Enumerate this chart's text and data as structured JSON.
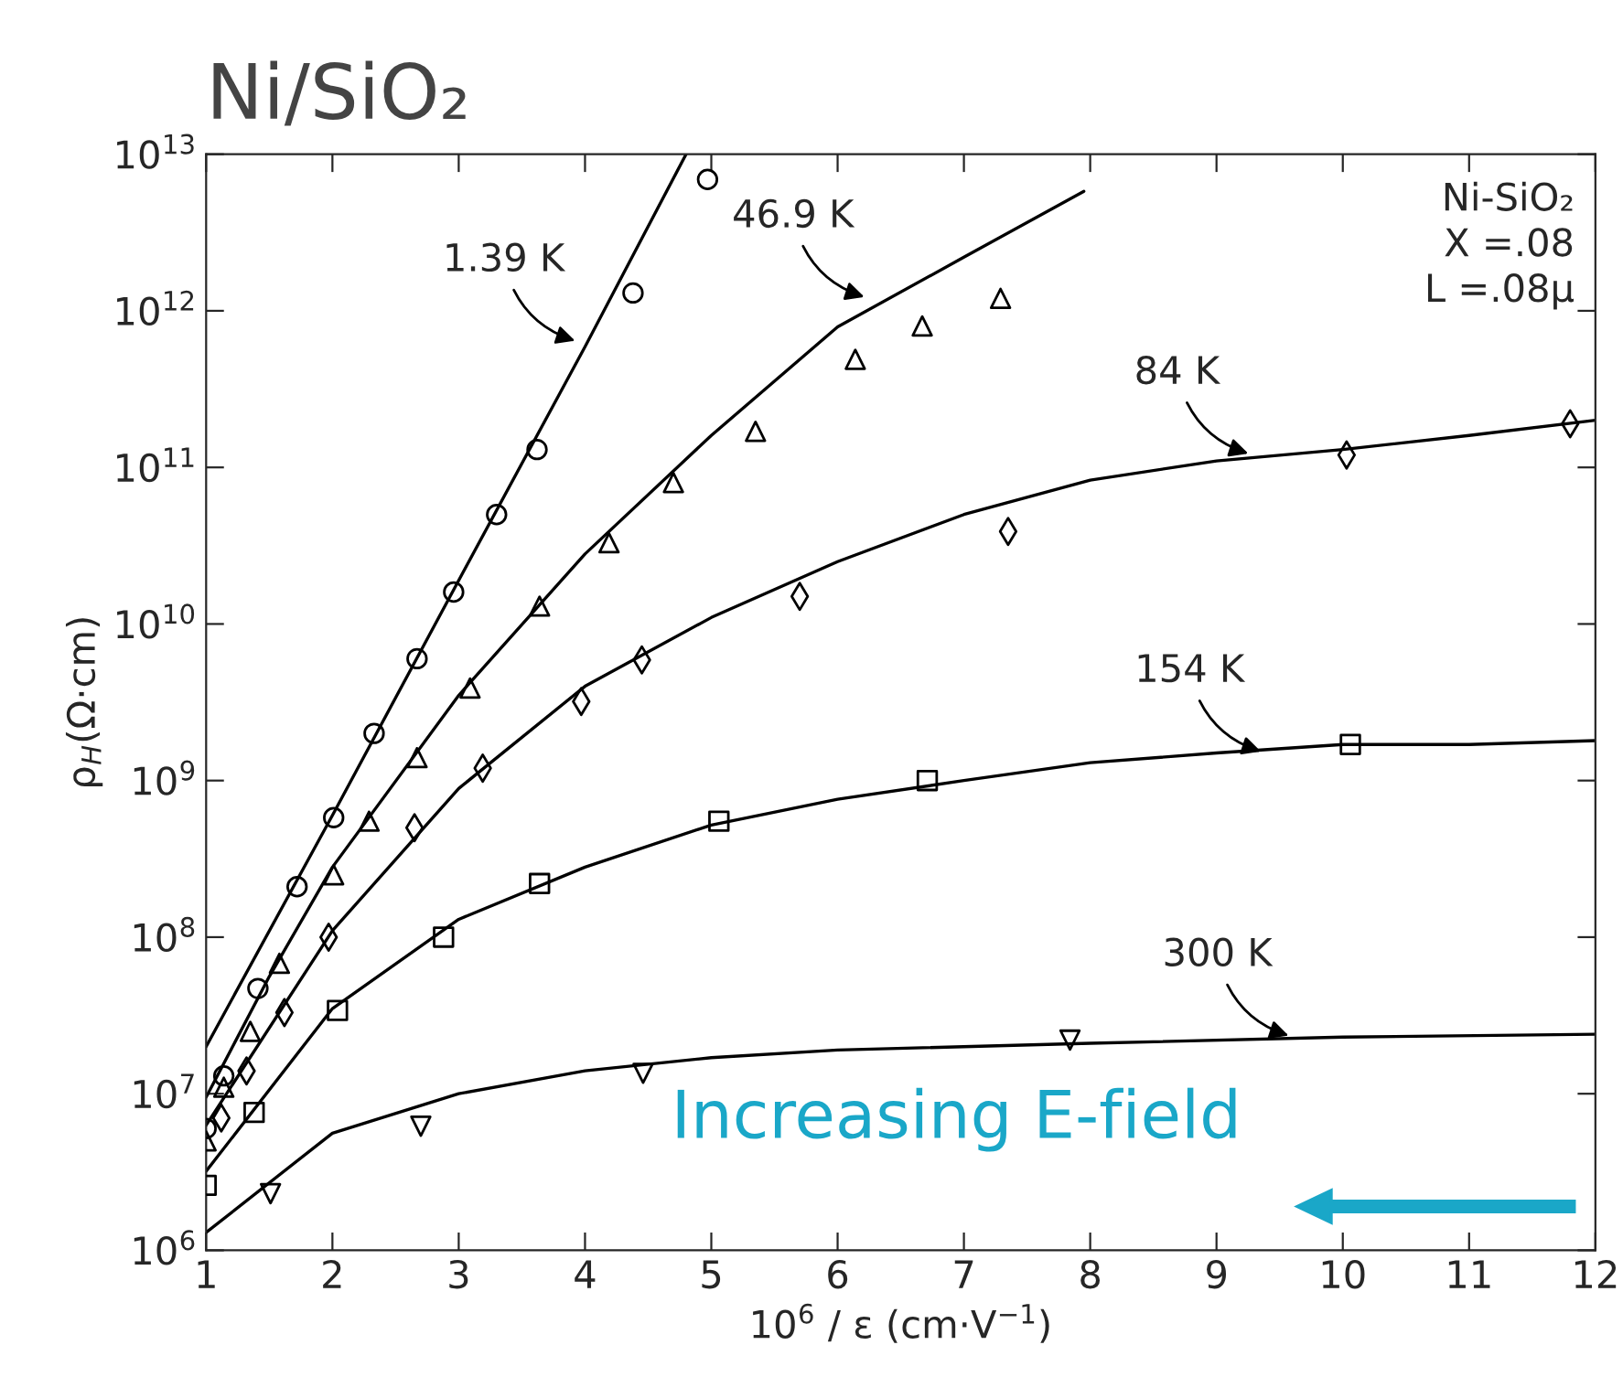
{
  "chart_data": {
    "type": "scatter",
    "title": "Ni/SiO₂",
    "xlabel": "10$^{6}$ / ε (cm·V$^{−1}$)",
    "ylabel": "ρ$_{H}$(Ω·cm)",
    "xlim": [
      1,
      12
    ],
    "xticks": [
      1,
      2,
      3,
      4,
      5,
      6,
      7,
      8,
      9,
      10,
      11,
      12
    ],
    "ylim": [
      1000000.0,
      10000000000000.0
    ],
    "log": true,
    "yticks": [
      {
        "value": 1000000.0,
        "label": "10$^{6}$"
      },
      {
        "value": 10000000.0,
        "label": "10$^{7}$"
      },
      {
        "value": 100000000.0,
        "label": "10$^{8}$"
      },
      {
        "value": 1000000000.0,
        "label": "10$^{9}$"
      },
      {
        "value": 10000000000.0,
        "label": "10$^{10}$"
      },
      {
        "value": 100000000000.0,
        "label": "10$^{11}$"
      },
      {
        "value": 1000000000000.0,
        "label": "10$^{12}$"
      },
      {
        "value": 10000000000000.0,
        "label": "10$^{13}$"
      }
    ],
    "grid": false,
    "series": [
      {
        "marker": "circle",
        "color": "#000000",
        "x": [
          1.0,
          1.14,
          1.41,
          1.72,
          2.01,
          2.33,
          2.67,
          2.96,
          3.3,
          3.62,
          4.38,
          4.97
        ],
        "values": [
          6000000.0,
          13000000.0,
          47000000.0,
          210000000.0,
          580000000.0,
          2000000000.0,
          6000000000.0,
          16000000000.0,
          50000000000.0,
          130000000000.0,
          1300000000000.0,
          6900000000000.0
        ]
      },
      {
        "type": "line",
        "marker": "none",
        "line_style": "solid",
        "color": "#000000",
        "x": [
          1,
          2,
          3,
          4,
          4.8
        ],
        "values": [
          20000000.0,
          600000000.0,
          19000000000.0,
          590000000000.0,
          10000000000000.0
        ]
      },
      {
        "marker": "triangle",
        "color": "#000000",
        "x": [
          1.0,
          1.14,
          1.35,
          1.58,
          2.01,
          2.29,
          2.67,
          3.09,
          3.64,
          4.19,
          4.7,
          5.35,
          6.14,
          6.67,
          7.29
        ],
        "values": [
          5000000.0,
          11000000.0,
          25000000.0,
          68000000.0,
          250000000.0,
          550000000.0,
          1400000000.0,
          3900000000.0,
          13000000000.0,
          33000000000.0,
          80000000000.0,
          170000000000.0,
          490000000000.0,
          800000000000.0,
          1200000000000.0
        ]
      },
      {
        "type": "line",
        "marker": "none",
        "line_style": "solid",
        "color": "#000000",
        "x": [
          1,
          1.5,
          2,
          3,
          4,
          5,
          6,
          7,
          7.95
        ],
        "values": [
          9500000.0,
          56000000.0,
          280000000.0,
          3500000000.0,
          28000000000.0,
          160000000000.0,
          790000000000.0,
          2200000000000.0,
          5800000000000.0
        ]
      },
      {
        "marker": "diamond",
        "color": "#000000",
        "x": [
          1.12,
          1.32,
          1.62,
          1.97,
          2.65,
          3.19,
          3.97,
          4.45,
          5.7,
          7.35,
          10.03,
          11.8
        ],
        "values": [
          7000000.0,
          14000000.0,
          33000000.0,
          100000000.0,
          500000000.0,
          1200000000.0,
          3200000000.0,
          5900000000.0,
          15000000000.0,
          39000000000.0,
          120000000000.0,
          190000000000.0
        ]
      },
      {
        "type": "line",
        "marker": "none",
        "line_style": "solid",
        "color": "#000000",
        "x": [
          1,
          2,
          3,
          4,
          5,
          6,
          7,
          8,
          9,
          10,
          11,
          12
        ],
        "values": [
          6300000.0,
          110000000.0,
          890000000.0,
          4000000000.0,
          11000000000.0,
          25000000000.0,
          50000000000.0,
          83000000000.0,
          110000000000.0,
          130000000000.0,
          160000000000.0,
          200000000000.0
        ]
      },
      {
        "marker": "square",
        "color": "#000000",
        "x": [
          1.0,
          1.38,
          2.04,
          2.88,
          3.64,
          5.06,
          6.71,
          10.06
        ],
        "values": [
          2600000.0,
          7600000.0,
          34000000.0,
          100000000.0,
          220000000.0,
          550000000.0,
          1000000000.0,
          1700000000.0
        ]
      },
      {
        "type": "line",
        "marker": "none",
        "line_style": "solid",
        "color": "#000000",
        "x": [
          1,
          2,
          3,
          4,
          5,
          6,
          7,
          8,
          9,
          10,
          11,
          12
        ],
        "values": [
          3200000.0,
          35000000.0,
          130000000.0,
          280000000.0,
          520000000.0,
          760000000.0,
          1000000000.0,
          1300000000.0,
          1500000000.0,
          1700000000.0,
          1700000000.0,
          1800000000.0
        ]
      },
      {
        "marker": "triangle_down",
        "color": "#000000",
        "x": [
          1.51,
          2.7,
          4.46,
          7.84
        ],
        "values": [
          2300000.0,
          6200000.0,
          13500000.0,
          22000000.0
        ]
      },
      {
        "type": "line",
        "marker": "none",
        "line_style": "solid",
        "color": "#000000",
        "x": [
          1,
          2,
          3,
          4,
          5,
          6,
          8,
          10,
          12
        ],
        "values": [
          1300000.0,
          5600000.0,
          10000000.0,
          14000000.0,
          17000000.0,
          19000000.0,
          21000000.0,
          23000000.0,
          24000000.0
        ]
      }
    ],
    "annotations": [
      {
        "text": "1.39 K",
        "x": 3.96,
        "y": 630000000000.0
      },
      {
        "text": "46.9 K",
        "x": 6.25,
        "y": 1200000000000.0
      },
      {
        "text": "84 K",
        "x": 9.29,
        "y": 120000000000.0
      },
      {
        "text": "154 K",
        "x": 9.39,
        "y": 1500000000.0
      },
      {
        "text": "300 K",
        "x": 9.61,
        "y": 23000000.0
      },
      "Ni-SiO₂\nX =.08\nL =.08μ",
      "Increasing E-field"
    ]
  }
}
